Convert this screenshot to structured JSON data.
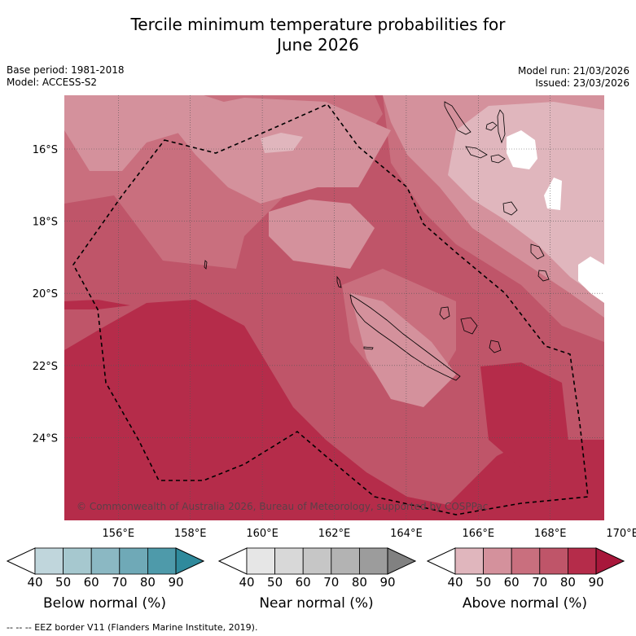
{
  "title_line1": "Tercile minimum temperature probabilities for",
  "title_line2": "June 2026",
  "base_period": "Base period: 1981-2018",
  "model": "Model: ACCESS-S2",
  "model_run": "Model run: 21/03/2026",
  "issued": "Issued: 23/03/2026",
  "copyright": "© Commonwealth of Australia 2026, Bureau of Meteorology, supported by COSPPac",
  "lon_labels": [
    "156°E",
    "158°E",
    "160°E",
    "162°E",
    "164°E",
    "166°E",
    "168°E",
    "170°E"
  ],
  "lat_labels": [
    "16°S",
    "18°S",
    "20°S",
    "22°S",
    "24°S"
  ],
  "colorbars": [
    {
      "label": "Below normal (%)",
      "ticks": [
        "40",
        "50",
        "60",
        "70",
        "80",
        "90"
      ],
      "colors": [
        "#c0d6dc",
        "#a6c8cf",
        "#8bb8c3",
        "#6fa9b7",
        "#4e9aaa",
        "#2f8a9c"
      ]
    },
    {
      "label": "Near normal (%)",
      "ticks": [
        "40",
        "50",
        "60",
        "70",
        "80",
        "90"
      ],
      "colors": [
        "#e6e6e6",
        "#d8d8d8",
        "#c6c6c6",
        "#b3b3b3",
        "#9c9c9c",
        "#818181"
      ]
    },
    {
      "label": "Above normal (%)",
      "ticks": [
        "40",
        "50",
        "60",
        "70",
        "80",
        "90"
      ],
      "colors": [
        "#e0b6bd",
        "#d4919c",
        "#c96f7e",
        "#bf5569",
        "#b52c4a",
        "#a8173b"
      ]
    }
  ],
  "legend_note": "--  --  -- EEZ border V11 (Flanders Marine Institute, 2019).",
  "colors": {
    "p40": "#e0b6bd",
    "p50": "#d4919c",
    "p60": "#c96f7e",
    "p70": "#bf5569",
    "p80": "#b52c4a",
    "white": "#ffffff"
  }
}
